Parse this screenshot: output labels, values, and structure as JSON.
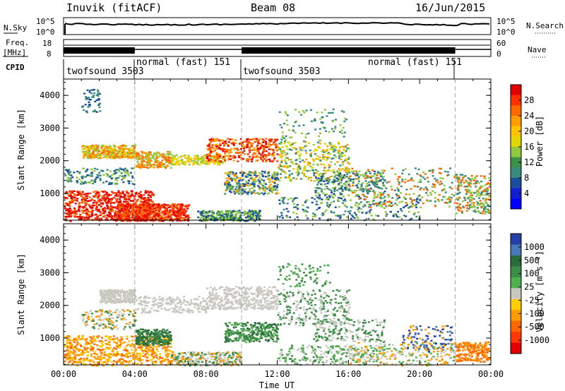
{
  "header": {
    "station": "Inuvik (fitACF)",
    "beam": "Beam 08",
    "date": "16/Jun/2015"
  },
  "panels": {
    "nsky": {
      "label": "N.Sky",
      "right_label": "N.Search",
      "ticks": [
        "10^5",
        "10^0"
      ]
    },
    "freq": {
      "label_1": "Freq.",
      "label_2": "[MHz]",
      "ticks_left": [
        "18",
        "8"
      ],
      "ticks_right": [
        "60",
        "0"
      ],
      "right_label": "Nave"
    },
    "cpid": {
      "label": "CPID",
      "segments": [
        {
          "name": "twofsound 3503",
          "start": 0,
          "end": 4,
          "thick": true
        },
        {
          "name": "normal (fast) 151",
          "start": 4,
          "end": 10,
          "thick": false
        },
        {
          "name": "twofsound 3503",
          "start": 10,
          "end": 22,
          "thick": true
        },
        {
          "name": "normal (fast) 151",
          "start": 22,
          "end": 24,
          "thick": false
        }
      ]
    }
  },
  "chart_data": [
    {
      "type": "heatmap",
      "title": "",
      "xlabel": "",
      "ylabel": "Slant Range [km]",
      "xlim": [
        0,
        24
      ],
      "ylim": [
        180,
        4500
      ],
      "x_ticks": [
        "00:00",
        "04:00",
        "08:00",
        "12:00",
        "16:00",
        "20:00",
        "00:00"
      ],
      "y_ticks": [
        "1000",
        "2000",
        "3000",
        "4000"
      ],
      "colorbar": {
        "label": "Power [dB]",
        "ticks": [
          "28",
          "24",
          "20",
          "16",
          "12",
          "8",
          "4"
        ],
        "colors": [
          "#e00000",
          "#ff3000",
          "#ff6a00",
          "#ff9c00",
          "#ffc400",
          "#e0d800",
          "#90c840",
          "#3c9048",
          "#3a8a80",
          "#1c4c9c",
          "#1020d0",
          "#0000ff"
        ]
      }
    },
    {
      "type": "heatmap",
      "title": "",
      "xlabel": "Time UT",
      "ylabel": "Slant Range [km]",
      "xlim": [
        0,
        24
      ],
      "ylim": [
        180,
        4500
      ],
      "x_ticks": [
        "00:00",
        "04:00",
        "08:00",
        "12:00",
        "16:00",
        "20:00",
        "00:00"
      ],
      "y_ticks": [
        "1000",
        "2000",
        "3000",
        "4000"
      ],
      "colorbar": {
        "label": "Velocity [m s⁻¹]",
        "ticks": [
          "1000",
          "500",
          "100",
          "25",
          "-25",
          "-100",
          "-500",
          "-1000"
        ],
        "colors": [
          "#2440a8",
          "#4878b8",
          "#2c6c3c",
          "#3c8c48",
          "#50b050",
          "#c8c8c0",
          "#ffcc00",
          "#ff9a00",
          "#ff6800",
          "#ff3800",
          "#e00000"
        ]
      }
    }
  ]
}
